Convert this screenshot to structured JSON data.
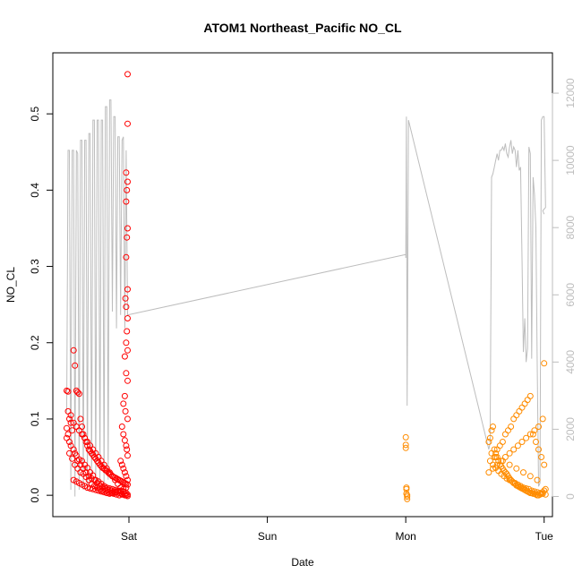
{
  "chart_data": {
    "type": "scatter",
    "title": "ATOM1 Northeast_Pacific NO_CL",
    "xlabel": "Date",
    "ylabel": "NO_CL",
    "x_ticks": [
      "Sat",
      "Sun",
      "Mon",
      "Tue"
    ],
    "x_tick_values": [
      1.0,
      2.0,
      3.0,
      4.0
    ],
    "x_range": [
      0.45,
      4.06
    ],
    "ylim": [
      -0.028,
      0.58
    ],
    "y_ticks": [
      "0.0",
      "0.1",
      "0.2",
      "0.3",
      "0.4",
      "0.5"
    ],
    "y_tick_values": [
      0.0,
      0.1,
      0.2,
      0.3,
      0.4,
      0.5
    ],
    "y2_range": [
      -600,
      13200
    ],
    "y2_ticks": [
      "0",
      "2000",
      "4000",
      "6000",
      "8000",
      "10000",
      "12000"
    ],
    "y2_tick_values": [
      0,
      2000,
      4000,
      6000,
      8000,
      10000,
      12000
    ],
    "grid": false,
    "colors": {
      "series_red": "#ff0000",
      "series_orange": "#ff8c00",
      "altitude_line": "#bdbdbd"
    },
    "series": [
      {
        "color": "#ff0000",
        "marker": "open-circle",
        "x": [
          0.55,
          0.56,
          0.57,
          0.58,
          0.59,
          0.6,
          0.61,
          0.62,
          0.63,
          0.64,
          0.65,
          0.66,
          0.67,
          0.68,
          0.69,
          0.7,
          0.71,
          0.72,
          0.73,
          0.74,
          0.75,
          0.76,
          0.77,
          0.78,
          0.79,
          0.8,
          0.81,
          0.82,
          0.83,
          0.84,
          0.85,
          0.86,
          0.87,
          0.88,
          0.89,
          0.9,
          0.91,
          0.92,
          0.93,
          0.94,
          0.95,
          0.96,
          0.97,
          0.98,
          0.99,
          0.55,
          0.57,
          0.6,
          0.62,
          0.64,
          0.66,
          0.68,
          0.7,
          0.72,
          0.74,
          0.76,
          0.78,
          0.8,
          0.82,
          0.84,
          0.86,
          0.88,
          0.9,
          0.92,
          0.94,
          0.96,
          0.98,
          0.56,
          0.58,
          0.61,
          0.63,
          0.65,
          0.67,
          0.69,
          0.71,
          0.73,
          0.75,
          0.77,
          0.79,
          0.81,
          0.83,
          0.85,
          0.87,
          0.89,
          0.91,
          0.93,
          0.95,
          0.97,
          0.99,
          0.55,
          0.57,
          0.59,
          0.61,
          0.63,
          0.65,
          0.67,
          0.69,
          0.71,
          0.73,
          0.75,
          0.77,
          0.79,
          0.81,
          0.83,
          0.85,
          0.87,
          0.89,
          0.91,
          0.93,
          0.95,
          0.97,
          0.99,
          0.6,
          0.62,
          0.64,
          0.66,
          0.68,
          0.7,
          0.72,
          0.74,
          0.76,
          0.78,
          0.8,
          0.82,
          0.84,
          0.86,
          0.88,
          0.9,
          0.92,
          0.94,
          0.96,
          0.98,
          0.99,
          0.99,
          0.98,
          0.99,
          0.985,
          0.98,
          0.99,
          0.985,
          0.98,
          0.99,
          0.975,
          0.98,
          0.99,
          0.985,
          0.98,
          0.99,
          0.97,
          0.98,
          0.99,
          0.97,
          0.96,
          0.975,
          0.99,
          0.95,
          0.96,
          0.97,
          0.98,
          0.985,
          0.99,
          0.94,
          0.95,
          0.96,
          0.97,
          0.98,
          0.99,
          0.56,
          0.58,
          0.6,
          0.62,
          0.64,
          0.66,
          0.68,
          0.7,
          0.72,
          0.74,
          0.76,
          0.78,
          0.8,
          0.82,
          0.84,
          0.86,
          0.88,
          0.9,
          0.92,
          0.94,
          0.96,
          0.98
        ],
        "y": [
          0.137,
          0.136,
          0.1,
          0.095,
          0.085,
          0.19,
          0.17,
          0.137,
          0.135,
          0.133,
          0.1,
          0.09,
          0.08,
          0.075,
          0.07,
          0.065,
          0.06,
          0.058,
          0.055,
          0.053,
          0.05,
          0.048,
          0.045,
          0.043,
          0.04,
          0.038,
          0.036,
          0.035,
          0.033,
          0.032,
          0.03,
          0.028,
          0.027,
          0.025,
          0.024,
          0.023,
          0.022,
          0.021,
          0.02,
          0.019,
          0.018,
          0.017,
          0.016,
          0.015,
          0.014,
          0.088,
          0.07,
          0.06,
          0.052,
          0.047,
          0.045,
          0.04,
          0.036,
          0.03,
          0.026,
          0.02,
          0.018,
          0.015,
          0.012,
          0.01,
          0.009,
          0.008,
          0.007,
          0.006,
          0.005,
          0.004,
          0.003,
          0.08,
          0.065,
          0.055,
          0.045,
          0.04,
          0.035,
          0.03,
          0.025,
          0.022,
          0.02,
          0.016,
          0.013,
          0.011,
          0.009,
          0.007,
          0.006,
          0.005,
          0.004,
          0.003,
          0.002,
          0.002,
          0.001,
          0.075,
          0.055,
          0.048,
          0.04,
          0.035,
          0.03,
          0.028,
          0.024,
          0.02,
          0.015,
          0.012,
          0.01,
          0.008,
          0.006,
          0.005,
          0.004,
          0.003,
          0.002,
          0.001,
          0.0,
          0.001,
          0.0,
          -0.001,
          0.02,
          0.018,
          0.016,
          0.014,
          0.012,
          0.01,
          0.009,
          0.008,
          0.007,
          0.006,
          0.005,
          0.004,
          0.003,
          0.002,
          0.003,
          0.004,
          0.005,
          0.006,
          0.008,
          0.01,
          0.552,
          0.487,
          0.423,
          0.411,
          0.4,
          0.385,
          0.35,
          0.338,
          0.312,
          0.27,
          0.258,
          0.247,
          0.232,
          0.215,
          0.2,
          0.19,
          0.182,
          0.16,
          0.15,
          0.13,
          0.12,
          0.11,
          0.1,
          0.09,
          0.08,
          0.072,
          0.065,
          0.06,
          0.052,
          0.045,
          0.04,
          0.035,
          0.03,
          0.025,
          0.02,
          0.11,
          0.105,
          0.095,
          0.09,
          0.085,
          0.08,
          0.075,
          0.07,
          0.065,
          0.06,
          0.055,
          0.05,
          0.045,
          0.04,
          0.035,
          0.03,
          0.025,
          0.02,
          0.015,
          0.01,
          0.005,
          0.0
        ]
      },
      {
        "color": "#ff8c00",
        "marker": "open-circle",
        "x": [
          3.0,
          3.0,
          3.0,
          3.005,
          3.005,
          3.005,
          3.01,
          3.01,
          3.01,
          3.6,
          3.61,
          3.62,
          3.63,
          3.64,
          3.65,
          3.66,
          3.67,
          3.68,
          3.69,
          3.7,
          3.71,
          3.72,
          3.73,
          3.74,
          3.75,
          3.76,
          3.77,
          3.78,
          3.79,
          3.8,
          3.81,
          3.82,
          3.83,
          3.84,
          3.85,
          3.86,
          3.87,
          3.88,
          3.89,
          3.9,
          3.91,
          3.92,
          3.93,
          3.94,
          3.95,
          3.96,
          3.97,
          3.98,
          3.99,
          4.0,
          4.01,
          3.61,
          3.63,
          3.65,
          3.67,
          3.69,
          3.71,
          3.73,
          3.75,
          3.77,
          3.79,
          3.81,
          3.83,
          3.85,
          3.87,
          3.89,
          3.91,
          3.93,
          3.95,
          3.97,
          3.99,
          4.01,
          3.62,
          3.64,
          3.66,
          3.68,
          3.7,
          3.72,
          3.74,
          3.76,
          3.78,
          3.8,
          3.82,
          3.84,
          3.86,
          3.88,
          3.9,
          3.92,
          3.94,
          3.96,
          3.98,
          4.0,
          3.6,
          3.63,
          3.66,
          3.69,
          3.72,
          3.75,
          3.78,
          3.81,
          3.84,
          3.87,
          3.9,
          3.93,
          3.96,
          3.99,
          3.65,
          3.7,
          3.75,
          3.8,
          3.85,
          3.9,
          3.95,
          4.0
        ],
        "y": [
          0.076,
          0.066,
          0.062,
          0.01,
          0.008,
          0.002,
          0.0,
          -0.002,
          -0.005,
          0.07,
          0.075,
          0.085,
          0.09,
          0.06,
          0.055,
          0.05,
          0.045,
          0.04,
          0.038,
          0.035,
          0.032,
          0.03,
          0.028,
          0.025,
          0.022,
          0.02,
          0.018,
          0.016,
          0.015,
          0.013,
          0.012,
          0.011,
          0.01,
          0.009,
          0.008,
          0.007,
          0.006,
          0.005,
          0.004,
          0.003,
          0.003,
          0.002,
          0.002,
          0.001,
          0.0,
          0.0,
          0.001,
          0.002,
          0.004,
          0.006,
          0.008,
          0.045,
          0.04,
          0.036,
          0.032,
          0.028,
          0.025,
          0.022,
          0.02,
          0.018,
          0.016,
          0.014,
          0.012,
          0.01,
          0.009,
          0.008,
          0.006,
          0.005,
          0.004,
          0.003,
          0.002,
          0.001,
          0.055,
          0.05,
          0.06,
          0.065,
          0.07,
          0.08,
          0.085,
          0.09,
          0.1,
          0.105,
          0.11,
          0.115,
          0.12,
          0.125,
          0.13,
          0.08,
          0.07,
          0.06,
          0.05,
          0.04,
          0.03,
          0.035,
          0.04,
          0.045,
          0.05,
          0.055,
          0.06,
          0.065,
          0.07,
          0.075,
          0.08,
          0.085,
          0.09,
          0.1,
          0.05,
          0.045,
          0.04,
          0.035,
          0.03,
          0.025,
          0.02,
          0.173
        ]
      }
    ],
    "altitude_series": {
      "color": "#bdbdbd",
      "axis": "right",
      "x": [
        0.55,
        0.56,
        0.57,
        0.58,
        0.59,
        0.6,
        0.61,
        0.62,
        0.63,
        0.64,
        0.65,
        0.66,
        0.67,
        0.68,
        0.69,
        0.7,
        0.71,
        0.72,
        0.73,
        0.74,
        0.75,
        0.76,
        0.77,
        0.78,
        0.79,
        0.8,
        0.81,
        0.82,
        0.83,
        0.84,
        0.85,
        0.86,
        0.87,
        0.88,
        0.89,
        0.9,
        0.91,
        0.92,
        0.93,
        0.94,
        0.95,
        0.96,
        0.97,
        0.98,
        0.99,
        3.0,
        3.0,
        3.005,
        3.005,
        3.01,
        3.01,
        3.02,
        3.6,
        3.61,
        3.62,
        3.63,
        3.64,
        3.65,
        3.66,
        3.67,
        3.68,
        3.69,
        3.7,
        3.71,
        3.72,
        3.73,
        3.74,
        3.75,
        3.76,
        3.77,
        3.78,
        3.79,
        3.8,
        3.81,
        3.82,
        3.83,
        3.84,
        3.85,
        3.86,
        3.87,
        3.88,
        3.89,
        3.9,
        3.91,
        3.92,
        3.93,
        3.94,
        3.95,
        3.96,
        3.97,
        3.98,
        3.99,
        4.0,
        4.01,
        3.99,
        4.0
      ],
      "y": [
        2500,
        10300,
        10300,
        200,
        10300,
        10300,
        0,
        10300,
        10200,
        200,
        10600,
        10600,
        200,
        10600,
        10600,
        200,
        10800,
        10800,
        400,
        11200,
        11200,
        200,
        11200,
        11200,
        400,
        11200,
        11200,
        300,
        11600,
        11600,
        500,
        11800,
        11800,
        5500,
        11300,
        11300,
        5000,
        10700,
        10700,
        5400,
        10600,
        10700,
        5000,
        10300,
        5400,
        7200,
        7100,
        11300,
        11300,
        2800,
        2700,
        11200,
        1400,
        1600,
        9500,
        9600,
        9800,
        10000,
        10200,
        10000,
        10300,
        10300,
        10400,
        10300,
        10500,
        10200,
        10100,
        10400,
        10600,
        10200,
        10400,
        10300,
        9800,
        10300,
        9700,
        9800,
        7100,
        4300,
        5300,
        4000,
        4400,
        10400,
        10200,
        4100,
        9500,
        9000,
        8000,
        3900,
        300,
        400,
        11200,
        11300,
        11300,
        8600,
        8500,
        8400
      ]
    }
  }
}
